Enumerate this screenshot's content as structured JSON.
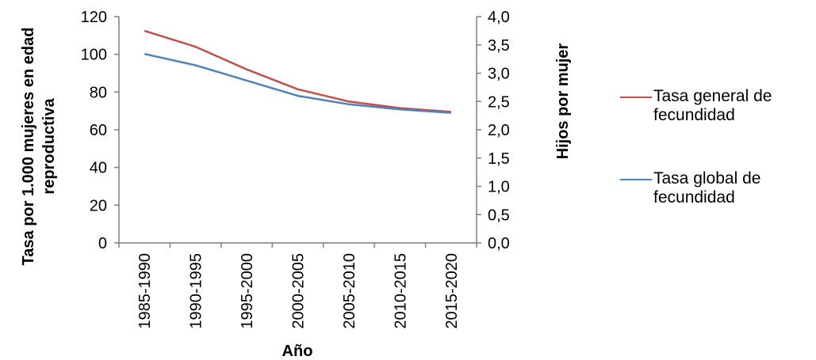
{
  "chart_data": {
    "type": "line",
    "categories": [
      "1985-1990",
      "1990-1995",
      "1995-2000",
      "2000-2005",
      "2005-2010",
      "2010-2015",
      "2015-2020"
    ],
    "xlabel": "Año",
    "ylabel_left": [
      "Tasa por 1.000 mujeres en edad",
      "reproductiva"
    ],
    "ylabel_right": "Hijos por mujer",
    "ylim_left": [
      0,
      120
    ],
    "ylim_right": [
      0,
      4
    ],
    "yticks_left": [
      "0",
      "20",
      "40",
      "60",
      "80",
      "100",
      "120"
    ],
    "yticks_right": [
      "0,0",
      "0,5",
      "1,0",
      "1,5",
      "2,0",
      "2,5",
      "3,0",
      "3,5",
      "4,0"
    ],
    "grid": false,
    "legend_position": "right",
    "series": [
      {
        "name": "Tasa general de fecundidad",
        "axis": "left",
        "color": "#c0504d",
        "values": [
          112.5,
          104,
          92,
          81.5,
          75,
          71.5,
          69.5
        ]
      },
      {
        "name": "Tasa global de fecundidad",
        "axis": "right",
        "color": "#4f81bd",
        "values": [
          3.34,
          3.14,
          2.87,
          2.6,
          2.45,
          2.36,
          2.3
        ]
      }
    ]
  }
}
